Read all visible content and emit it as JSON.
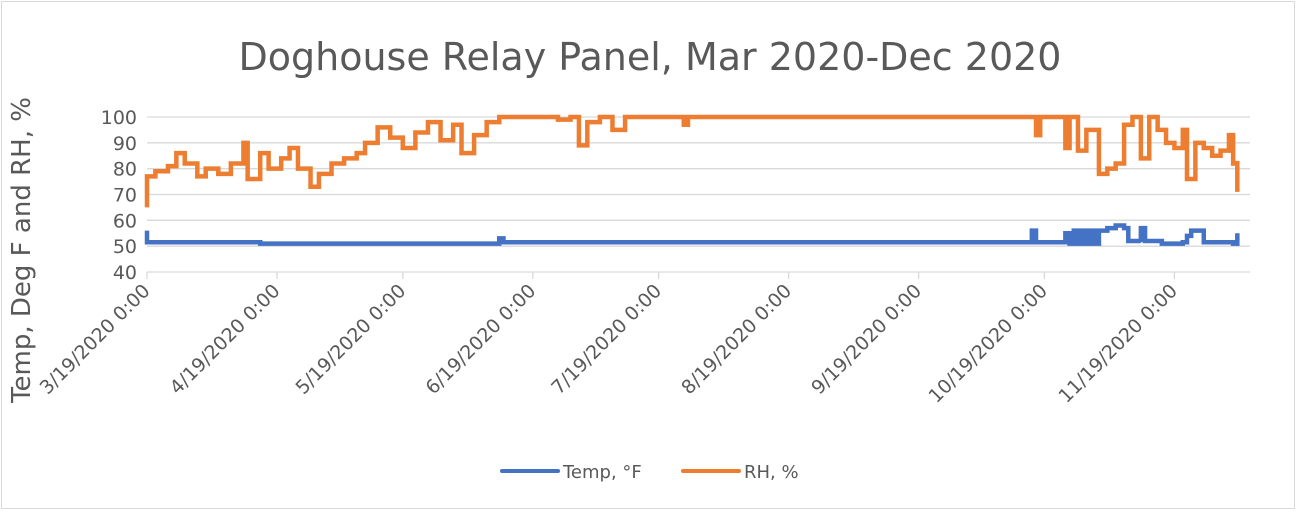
{
  "chart_data": {
    "type": "line",
    "title": "Doghouse Relay Panel, Mar 2020-Dec 2020",
    "xlabel": "",
    "ylabel": "Temp, Deg F and RH, %",
    "ylim": [
      40,
      100
    ],
    "yticks": [
      40,
      50,
      60,
      70,
      80,
      90,
      100
    ],
    "xlim": [
      "2020-03-19",
      "2020-12-04"
    ],
    "xtick_labels": [
      "3/19/2020 0:00",
      "4/19/2020 0:00",
      "5/19/2020 0:00",
      "6/19/2020 0:00",
      "7/19/2020 0:00",
      "8/19/2020 0:00",
      "9/19/2020 0:00",
      "10/19/2020 0:00",
      "11/19/2020 0:00"
    ],
    "xticks": [
      "2020-03-19",
      "2020-04-19",
      "2020-05-19",
      "2020-06-19",
      "2020-07-19",
      "2020-08-19",
      "2020-09-19",
      "2020-10-19",
      "2020-11-19"
    ],
    "grid": true,
    "legend": "bottom",
    "series": [
      {
        "name": "Temp, °F",
        "color": "#4472c4",
        "points": [
          [
            "2020-03-19",
            56
          ],
          [
            "2020-03-19",
            51.5
          ],
          [
            "2020-04-15",
            51
          ],
          [
            "2020-06-10",
            51
          ],
          [
            "2020-06-11",
            53
          ],
          [
            "2020-06-12",
            51.5
          ],
          [
            "2020-07-20",
            51.5
          ],
          [
            "2020-10-15",
            51.5
          ],
          [
            "2020-10-16",
            56
          ],
          [
            "2020-10-17",
            51.5
          ],
          [
            "2020-10-23",
            51.5
          ],
          [
            "2020-10-24",
            55
          ],
          [
            "2020-10-25",
            51
          ],
          [
            "2020-10-26",
            56
          ],
          [
            "2020-10-27",
            51
          ],
          [
            "2020-10-28",
            56
          ],
          [
            "2020-10-29",
            51
          ],
          [
            "2020-10-30",
            56
          ],
          [
            "2020-10-31",
            51
          ],
          [
            "2020-11-01",
            56
          ],
          [
            "2020-11-03",
            57
          ],
          [
            "2020-11-05",
            58
          ],
          [
            "2020-11-07",
            57
          ],
          [
            "2020-11-08",
            52
          ],
          [
            "2020-11-11",
            51.5
          ],
          [
            "2020-11-11",
            57
          ],
          [
            "2020-11-12",
            52
          ],
          [
            "2020-11-16",
            51
          ],
          [
            "2020-11-21",
            51.5
          ],
          [
            "2020-11-22",
            54
          ],
          [
            "2020-11-23",
            56
          ],
          [
            "2020-11-25",
            56
          ],
          [
            "2020-11-26",
            51.5
          ],
          [
            "2020-12-03",
            51
          ],
          [
            "2020-12-04",
            51
          ],
          [
            "2020-12-04",
            55
          ]
        ]
      },
      {
        "name": "RH, %",
        "color": "#ed7d31",
        "points": [
          [
            "2020-03-19",
            65
          ],
          [
            "2020-03-19",
            77
          ],
          [
            "2020-03-21",
            79
          ],
          [
            "2020-03-24",
            81
          ],
          [
            "2020-03-26",
            86
          ],
          [
            "2020-03-28",
            82
          ],
          [
            "2020-03-31",
            77
          ],
          [
            "2020-04-02",
            80
          ],
          [
            "2020-04-05",
            78
          ],
          [
            "2020-04-08",
            82
          ],
          [
            "2020-04-11",
            90
          ],
          [
            "2020-04-12",
            76
          ],
          [
            "2020-04-15",
            86
          ],
          [
            "2020-04-17",
            80
          ],
          [
            "2020-04-20",
            84
          ],
          [
            "2020-04-22",
            88
          ],
          [
            "2020-04-24",
            80
          ],
          [
            "2020-04-27",
            73
          ],
          [
            "2020-04-29",
            78
          ],
          [
            "2020-05-02",
            82
          ],
          [
            "2020-05-05",
            84
          ],
          [
            "2020-05-08",
            86
          ],
          [
            "2020-05-10",
            90
          ],
          [
            "2020-05-13",
            96
          ],
          [
            "2020-05-16",
            92
          ],
          [
            "2020-05-19",
            88
          ],
          [
            "2020-05-22",
            94
          ],
          [
            "2020-05-25",
            98
          ],
          [
            "2020-05-28",
            91
          ],
          [
            "2020-05-31",
            97
          ],
          [
            "2020-06-02",
            86
          ],
          [
            "2020-06-05",
            93
          ],
          [
            "2020-06-08",
            98
          ],
          [
            "2020-06-11",
            100
          ],
          [
            "2020-06-20",
            100
          ],
          [
            "2020-06-25",
            99
          ],
          [
            "2020-06-28",
            100
          ],
          [
            "2020-06-30",
            89
          ],
          [
            "2020-07-02",
            98
          ],
          [
            "2020-07-05",
            100
          ],
          [
            "2020-07-08",
            95
          ],
          [
            "2020-07-11",
            100
          ],
          [
            "2020-07-24",
            100
          ],
          [
            "2020-07-25",
            97
          ],
          [
            "2020-07-26",
            100
          ],
          [
            "2020-10-16",
            100
          ],
          [
            "2020-10-17",
            93
          ],
          [
            "2020-10-18",
            100
          ],
          [
            "2020-10-23",
            100
          ],
          [
            "2020-10-24",
            88
          ],
          [
            "2020-10-25",
            100
          ],
          [
            "2020-10-27",
            87
          ],
          [
            "2020-10-29",
            95
          ],
          [
            "2020-11-01",
            78
          ],
          [
            "2020-11-03",
            80
          ],
          [
            "2020-11-05",
            82
          ],
          [
            "2020-11-07",
            97
          ],
          [
            "2020-11-09",
            100
          ],
          [
            "2020-11-11",
            84
          ],
          [
            "2020-11-13",
            100
          ],
          [
            "2020-11-15",
            95
          ],
          [
            "2020-11-17",
            90
          ],
          [
            "2020-11-19",
            88
          ],
          [
            "2020-11-21",
            95
          ],
          [
            "2020-11-22",
            76
          ],
          [
            "2020-11-24",
            90
          ],
          [
            "2020-11-26",
            88
          ],
          [
            "2020-11-28",
            85
          ],
          [
            "2020-11-30",
            87
          ],
          [
            "2020-12-02",
            93
          ],
          [
            "2020-12-03",
            82
          ],
          [
            "2020-12-04",
            71
          ],
          [
            "2020-12-04",
            83
          ]
        ]
      }
    ]
  }
}
